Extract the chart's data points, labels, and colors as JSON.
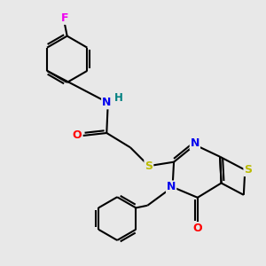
{
  "background_color": "#e8e8e8",
  "atom_colors": {
    "C": "#000000",
    "N": "#0000ee",
    "O": "#ff0000",
    "S": "#bbbb00",
    "F": "#ee00ee",
    "H": "#008080"
  },
  "figsize": [
    3.0,
    3.0
  ],
  "dpi": 100,
  "xlim": [
    0,
    10
  ],
  "ylim": [
    0,
    10
  ]
}
